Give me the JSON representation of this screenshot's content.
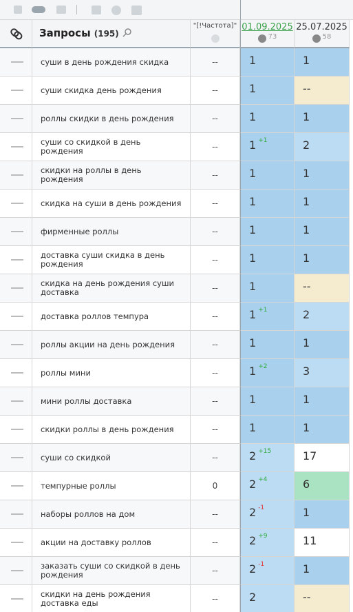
{
  "header": {
    "queries_label": "Запросы",
    "queries_count": "(195)",
    "frequency_label": "\"[!Частота]\"",
    "dates": [
      {
        "date": "01.09.2025",
        "score": 73
      },
      {
        "date": "25.07.2025",
        "score": 58
      }
    ]
  },
  "rows": [
    {
      "query": "суши в день рождения скидка",
      "frequency": "--",
      "positions": [
        {
          "value": 1,
          "color": "#a9d1ee"
        },
        {
          "value": 1,
          "color": "#a9d1ee"
        }
      ]
    },
    {
      "query": "суши скидка день рождения",
      "frequency": "--",
      "positions": [
        {
          "value": 1,
          "color": "#a9d1ee"
        },
        {
          "value": "--",
          "color": "#f5ebcf"
        }
      ]
    },
    {
      "query": "роллы скидки в день рождения",
      "frequency": "--",
      "positions": [
        {
          "value": 1,
          "color": "#a9d1ee"
        },
        {
          "value": 1,
          "color": "#a9d1ee"
        }
      ]
    },
    {
      "query": "суши со скидкой в день рождения",
      "frequency": "--",
      "positions": [
        {
          "value": 1,
          "change": "+1",
          "color": "#a9d1ee"
        },
        {
          "value": 2,
          "color": "#bcdcf4"
        }
      ]
    },
    {
      "query": "скидки на роллы в день рождения",
      "frequency": "--",
      "positions": [
        {
          "value": 1,
          "color": "#a9d1ee"
        },
        {
          "value": 1,
          "color": "#a9d1ee"
        }
      ]
    },
    {
      "query": "скидка на суши в день рождения",
      "frequency": "--",
      "positions": [
        {
          "value": 1,
          "color": "#a9d1ee"
        },
        {
          "value": 1,
          "color": "#a9d1ee"
        }
      ]
    },
    {
      "query": "фирменные роллы",
      "frequency": "--",
      "positions": [
        {
          "value": 1,
          "color": "#a9d1ee"
        },
        {
          "value": 1,
          "color": "#a9d1ee"
        }
      ]
    },
    {
      "query": "доставка суши скидка в день рождения",
      "frequency": "--",
      "positions": [
        {
          "value": 1,
          "color": "#a9d1ee"
        },
        {
          "value": 1,
          "color": "#a9d1ee"
        }
      ]
    },
    {
      "query": "скидка на день рождения суши доставка",
      "frequency": "--",
      "positions": [
        {
          "value": 1,
          "color": "#a9d1ee"
        },
        {
          "value": "--",
          "color": "#f5ebcf"
        }
      ]
    },
    {
      "query": "доставка роллов темпура",
      "frequency": "--",
      "positions": [
        {
          "value": 1,
          "change": "+1",
          "color": "#a9d1ee"
        },
        {
          "value": 2,
          "color": "#bcdcf4"
        }
      ]
    },
    {
      "query": "роллы акции на день рождения",
      "frequency": "--",
      "positions": [
        {
          "value": 1,
          "color": "#a9d1ee"
        },
        {
          "value": 1,
          "color": "#a9d1ee"
        }
      ]
    },
    {
      "query": "роллы мини",
      "frequency": "--",
      "positions": [
        {
          "value": 1,
          "change": "+2",
          "color": "#a9d1ee"
        },
        {
          "value": 3,
          "color": "#bcdcf4"
        }
      ]
    },
    {
      "query": "мини роллы доставка",
      "frequency": "--",
      "positions": [
        {
          "value": 1,
          "color": "#a9d1ee"
        },
        {
          "value": 1,
          "color": "#a9d1ee"
        }
      ]
    },
    {
      "query": "скидки роллы в день рождения",
      "frequency": "--",
      "positions": [
        {
          "value": 1,
          "color": "#a9d1ee"
        },
        {
          "value": 1,
          "color": "#a9d1ee"
        }
      ]
    },
    {
      "query": "суши со скидкой",
      "frequency": "--",
      "positions": [
        {
          "value": 2,
          "change": "+15",
          "color": "#bcdcf4"
        },
        {
          "value": 17,
          "color": "#ffffff"
        }
      ]
    },
    {
      "query": "темпурные роллы",
      "frequency": 0,
      "positions": [
        {
          "value": 2,
          "change": "+4",
          "color": "#bcdcf4"
        },
        {
          "value": 6,
          "color": "#a9e3c1"
        }
      ]
    },
    {
      "query": "наборы роллов на дом",
      "frequency": "--",
      "positions": [
        {
          "value": 2,
          "change": "-1",
          "color": "#bcdcf4"
        },
        {
          "value": 1,
          "color": "#a9d1ee"
        }
      ]
    },
    {
      "query": "акции на доставку роллов",
      "frequency": "--",
      "positions": [
        {
          "value": 2,
          "change": "+9",
          "color": "#bcdcf4"
        },
        {
          "value": 11,
          "color": "#ffffff"
        }
      ]
    },
    {
      "query": "заказать суши со скидкой в день рождения",
      "frequency": "--",
      "positions": [
        {
          "value": 2,
          "change": "-1",
          "color": "#bcdcf4"
        },
        {
          "value": 1,
          "color": "#a9d1ee"
        }
      ]
    },
    {
      "query": "скидки на день рождения доставка еды",
      "frequency": "--",
      "positions": [
        {
          "value": 2,
          "color": "#bcdcf4"
        },
        {
          "value": "--",
          "color": "#f5ebcf"
        }
      ]
    }
  ]
}
